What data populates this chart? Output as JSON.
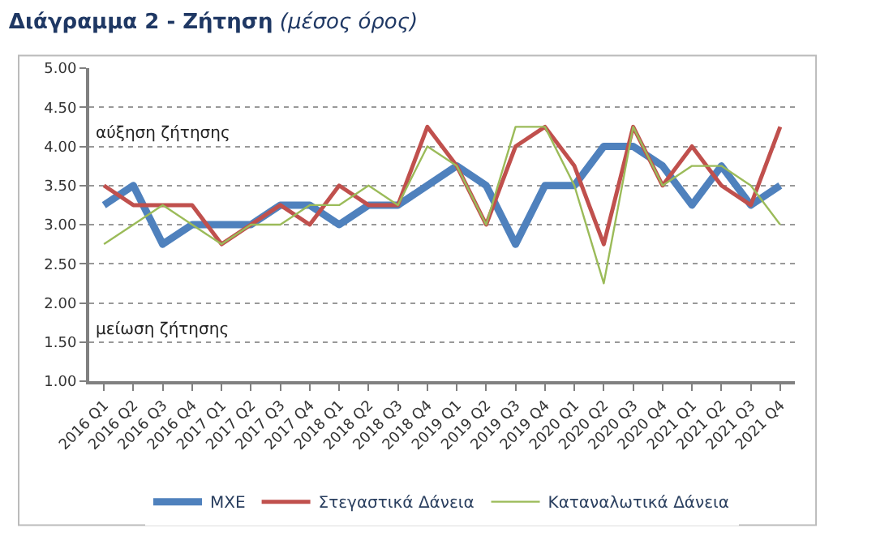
{
  "chart_data": {
    "type": "line",
    "title": "Διάγραμμα 2 - Ζήτηση",
    "subtitle": "(μέσος όρος)",
    "categories": [
      "2016 Q1",
      "2016 Q2",
      "2016 Q3",
      "2016 Q4",
      "2017 Q1",
      "2017 Q2",
      "2017 Q3",
      "2017 Q4",
      "2018 Q1",
      "2018 Q2",
      "2018 Q3",
      "2018 Q4",
      "2019 Q1",
      "2019 Q2",
      "2019 Q3",
      "2019 Q4",
      "2020 Q1",
      "2020 Q2",
      "2020 Q3",
      "2020 Q4",
      "2021 Q1",
      "2021 Q2",
      "2021 Q3",
      "2021 Q4"
    ],
    "series": [
      {
        "name": "ΜΧΕ",
        "color": "#4f81bd",
        "values": [
          3.25,
          3.5,
          2.75,
          3.0,
          3.0,
          3.0,
          3.25,
          3.25,
          3.0,
          3.25,
          3.25,
          3.5,
          3.75,
          3.5,
          2.75,
          3.5,
          3.5,
          4.0,
          4.0,
          3.75,
          3.25,
          3.75,
          3.25,
          3.5
        ]
      },
      {
        "name": "Στεγαστικά Δάνεια",
        "color": "#c0504d",
        "values": [
          3.5,
          3.25,
          3.25,
          3.25,
          2.75,
          3.0,
          3.25,
          3.0,
          3.5,
          3.25,
          3.25,
          4.25,
          3.75,
          3.0,
          4.0,
          4.25,
          3.75,
          2.75,
          4.25,
          3.5,
          4.0,
          3.5,
          3.25,
          4.25
        ]
      },
      {
        "name": "Καταναλωτικά Δάνεια",
        "color": "#9bbb59",
        "values": [
          2.75,
          3.0,
          3.25,
          3.0,
          2.75,
          3.0,
          3.0,
          3.25,
          3.25,
          3.5,
          3.25,
          4.0,
          3.75,
          3.0,
          4.25,
          4.25,
          3.5,
          2.25,
          4.25,
          3.5,
          3.75,
          3.75,
          3.5,
          3.0
        ]
      }
    ],
    "ylim": [
      1.0,
      5.0
    ],
    "yticks": [
      {
        "value": 1.0,
        "label": "1.00"
      },
      {
        "value": 1.5,
        "label": "1.50"
      },
      {
        "value": 2.0,
        "label": "2.00"
      },
      {
        "value": 2.5,
        "label": "2.50"
      },
      {
        "value": 3.0,
        "label": "3.00"
      },
      {
        "value": 3.5,
        "label": "3.50"
      },
      {
        "value": 4.0,
        "label": "4.00"
      },
      {
        "value": 4.5,
        "label": "4.50"
      },
      {
        "value": 5.0,
        "label": "5.00"
      }
    ],
    "grid": "y",
    "legend": "bottom",
    "marker": "none",
    "line_style": "solid",
    "annotations": [
      "αύξηση ζήτησης",
      "μείωση ζήτησης"
    ]
  }
}
